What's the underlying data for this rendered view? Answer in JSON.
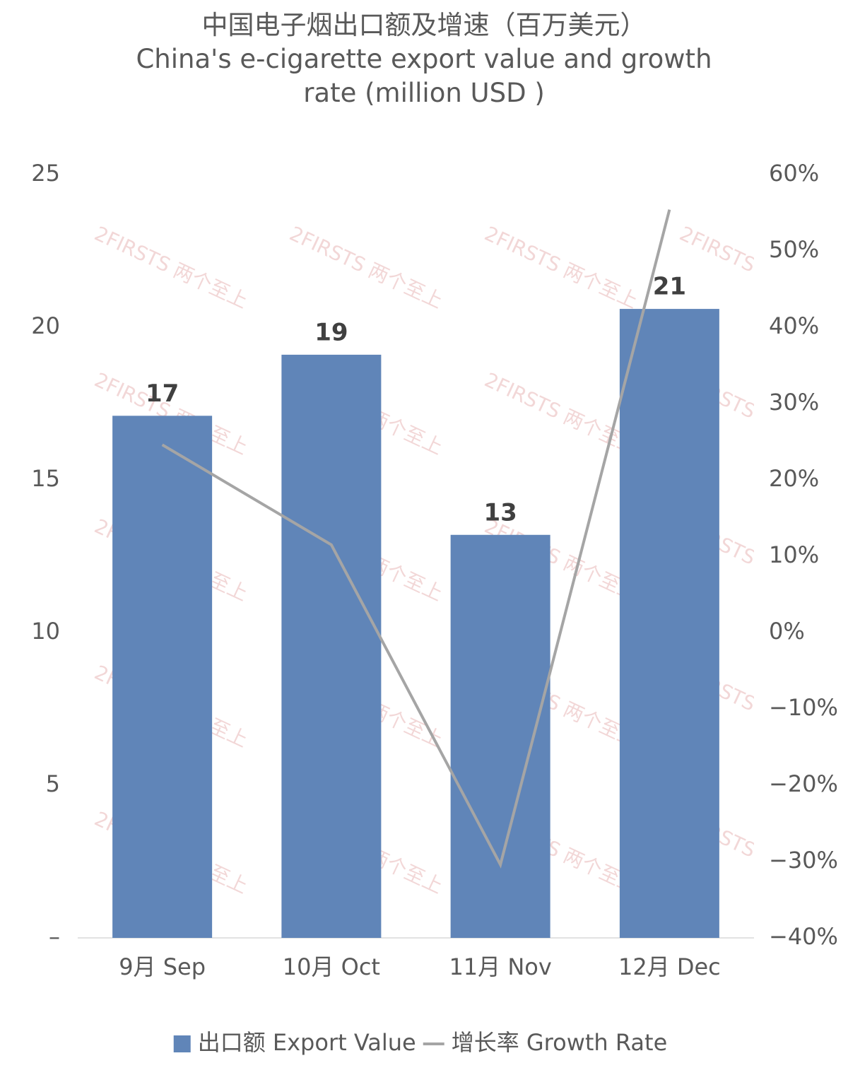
{
  "chart_data": {
    "type": "bar_line",
    "title": "中国电子烟出口额及增速（百万美元）",
    "subtitle": "China's e-cigarette export value and growth rate (million USD )",
    "watermark": "2FIRSTS 两个至上",
    "categories": [
      "9月 Sep",
      "10月 Oct",
      "11月 Nov",
      "12月 Dec"
    ],
    "series": [
      {
        "name": "出口额 Export Value",
        "type": "bar",
        "color": "#6085b8",
        "values": [
          17.1,
          19.1,
          13.2,
          20.6
        ],
        "value_labels": [
          "17",
          "19",
          "13",
          "21"
        ]
      },
      {
        "name": "增长率 Growth Rate",
        "type": "line",
        "axis": "y2",
        "color": "#a5a5a5",
        "values": [
          24.6,
          11.5,
          -30.4,
          55.4
        ]
      }
    ],
    "ylim": [
      0,
      25
    ],
    "yticks": [
      {
        "value": 0,
        "label": "–"
      },
      5,
      10,
      15,
      20,
      25
    ],
    "y2lim": [
      -40,
      60
    ],
    "y2ticks": [
      {
        "value": -40,
        "label": "−40%"
      },
      {
        "value": -30,
        "label": "−30%"
      },
      {
        "value": -20,
        "label": "−20%"
      },
      {
        "value": -10,
        "label": "−10%"
      },
      {
        "value": 0,
        "label": "0%"
      },
      {
        "value": 10,
        "label": "10%"
      },
      {
        "value": 20,
        "label": "20%"
      },
      {
        "value": 30,
        "label": "30%"
      },
      {
        "value": 40,
        "label": "40%"
      },
      {
        "value": 50,
        "label": "50%"
      },
      {
        "value": 60,
        "label": "60%"
      }
    ],
    "grid": false,
    "legend": "bottom"
  }
}
